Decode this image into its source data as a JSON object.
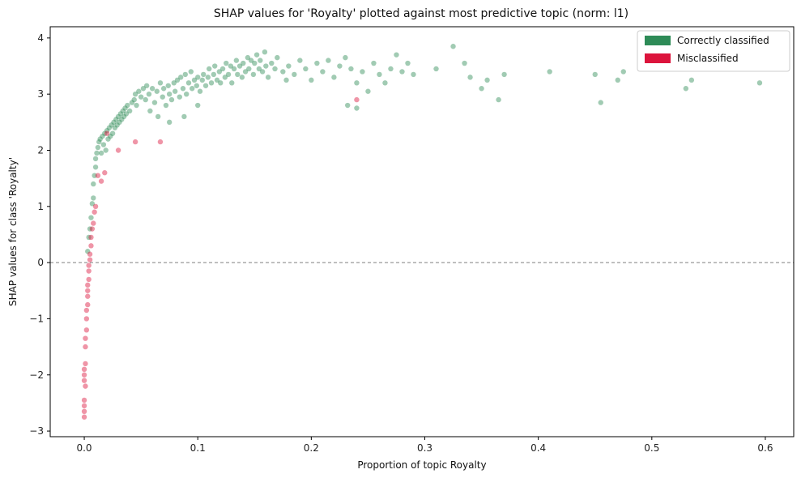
{
  "chart_data": {
    "type": "scatter",
    "title": "SHAP values for 'Royalty' plotted against most predictive topic (norm: l1)",
    "xlabel": "Proportion of topic Royalty",
    "ylabel": "SHAP values for class 'Royalty'",
    "xlim": [
      -0.03,
      0.625
    ],
    "ylim": [
      -3.1,
      4.2
    ],
    "xticks": [
      0.0,
      0.1,
      0.2,
      0.3,
      0.4,
      0.5,
      0.6
    ],
    "xtick_labels": [
      "0.0",
      "0.1",
      "0.2",
      "0.3",
      "0.4",
      "0.5",
      "0.6"
    ],
    "yticks": [
      -3,
      -2,
      -1,
      0,
      1,
      2,
      3,
      4
    ],
    "ytick_labels": [
      "−3",
      "−2",
      "−1",
      "0",
      "1",
      "2",
      "3",
      "4"
    ],
    "reference_line": {
      "y": 0,
      "style": "dashed",
      "color": "#808080"
    },
    "legend_position": "top-right",
    "series": [
      {
        "name": "Correctly classified",
        "color": "#2e8b57",
        "points": [
          [
            0.003,
            0.2
          ],
          [
            0.004,
            0.45
          ],
          [
            0.005,
            0.6
          ],
          [
            0.006,
            0.8
          ],
          [
            0.007,
            1.05
          ],
          [
            0.008,
            1.15
          ],
          [
            0.008,
            1.4
          ],
          [
            0.009,
            1.55
          ],
          [
            0.01,
            1.7
          ],
          [
            0.01,
            1.85
          ],
          [
            0.011,
            1.95
          ],
          [
            0.012,
            2.05
          ],
          [
            0.013,
            2.15
          ],
          [
            0.014,
            2.2
          ],
          [
            0.015,
            1.95
          ],
          [
            0.016,
            2.25
          ],
          [
            0.017,
            2.1
          ],
          [
            0.018,
            2.3
          ],
          [
            0.019,
            2.0
          ],
          [
            0.02,
            2.35
          ],
          [
            0.021,
            2.2
          ],
          [
            0.022,
            2.4
          ],
          [
            0.023,
            2.25
          ],
          [
            0.024,
            2.45
          ],
          [
            0.025,
            2.3
          ],
          [
            0.026,
            2.5
          ],
          [
            0.027,
            2.4
          ],
          [
            0.028,
            2.55
          ],
          [
            0.029,
            2.45
          ],
          [
            0.03,
            2.6
          ],
          [
            0.031,
            2.5
          ],
          [
            0.032,
            2.65
          ],
          [
            0.033,
            2.55
          ],
          [
            0.034,
            2.7
          ],
          [
            0.035,
            2.6
          ],
          [
            0.036,
            2.75
          ],
          [
            0.037,
            2.65
          ],
          [
            0.038,
            2.8
          ],
          [
            0.04,
            2.7
          ],
          [
            0.042,
            2.85
          ],
          [
            0.044,
            2.9
          ],
          [
            0.045,
            3.0
          ],
          [
            0.046,
            2.8
          ],
          [
            0.048,
            3.05
          ],
          [
            0.05,
            2.95
          ],
          [
            0.052,
            3.1
          ],
          [
            0.054,
            2.9
          ],
          [
            0.055,
            3.15
          ],
          [
            0.057,
            3.0
          ],
          [
            0.058,
            2.7
          ],
          [
            0.06,
            3.1
          ],
          [
            0.062,
            2.85
          ],
          [
            0.064,
            3.05
          ],
          [
            0.065,
            2.6
          ],
          [
            0.067,
            3.2
          ],
          [
            0.069,
            2.95
          ],
          [
            0.07,
            3.1
          ],
          [
            0.072,
            2.8
          ],
          [
            0.074,
            3.15
          ],
          [
            0.075,
            3.0
          ],
          [
            0.077,
            2.9
          ],
          [
            0.079,
            3.2
          ],
          [
            0.08,
            3.05
          ],
          [
            0.082,
            3.25
          ],
          [
            0.084,
            2.95
          ],
          [
            0.085,
            3.3
          ],
          [
            0.087,
            3.1
          ],
          [
            0.089,
            3.35
          ],
          [
            0.09,
            3.0
          ],
          [
            0.092,
            3.2
          ],
          [
            0.094,
            3.4
          ],
          [
            0.095,
            3.1
          ],
          [
            0.097,
            3.25
          ],
          [
            0.099,
            3.15
          ],
          [
            0.1,
            3.3
          ],
          [
            0.102,
            3.05
          ],
          [
            0.104,
            3.25
          ],
          [
            0.105,
            3.35
          ],
          [
            0.107,
            3.15
          ],
          [
            0.109,
            3.3
          ],
          [
            0.11,
            3.45
          ],
          [
            0.112,
            3.2
          ],
          [
            0.114,
            3.35
          ],
          [
            0.115,
            3.5
          ],
          [
            0.117,
            3.25
          ],
          [
            0.119,
            3.4
          ],
          [
            0.12,
            3.2
          ],
          [
            0.122,
            3.45
          ],
          [
            0.124,
            3.3
          ],
          [
            0.125,
            3.55
          ],
          [
            0.127,
            3.35
          ],
          [
            0.129,
            3.5
          ],
          [
            0.13,
            3.2
          ],
          [
            0.132,
            3.45
          ],
          [
            0.134,
            3.6
          ],
          [
            0.135,
            3.35
          ],
          [
            0.137,
            3.5
          ],
          [
            0.139,
            3.3
          ],
          [
            0.14,
            3.55
          ],
          [
            0.142,
            3.4
          ],
          [
            0.144,
            3.65
          ],
          [
            0.145,
            3.45
          ],
          [
            0.147,
            3.6
          ],
          [
            0.149,
            3.35
          ],
          [
            0.15,
            3.55
          ],
          [
            0.152,
            3.7
          ],
          [
            0.154,
            3.45
          ],
          [
            0.155,
            3.6
          ],
          [
            0.157,
            3.4
          ],
          [
            0.159,
            3.75
          ],
          [
            0.16,
            3.5
          ],
          [
            0.162,
            3.3
          ],
          [
            0.165,
            3.55
          ],
          [
            0.168,
            3.45
          ],
          [
            0.17,
            3.65
          ],
          [
            0.175,
            3.4
          ],
          [
            0.178,
            3.25
          ],
          [
            0.18,
            3.5
          ],
          [
            0.185,
            3.35
          ],
          [
            0.19,
            3.6
          ],
          [
            0.195,
            3.45
          ],
          [
            0.2,
            3.25
          ],
          [
            0.205,
            3.55
          ],
          [
            0.21,
            3.4
          ],
          [
            0.215,
            3.6
          ],
          [
            0.22,
            3.3
          ],
          [
            0.225,
            3.5
          ],
          [
            0.23,
            3.65
          ],
          [
            0.235,
            3.45
          ],
          [
            0.24,
            3.2
          ],
          [
            0.245,
            3.4
          ],
          [
            0.25,
            3.05
          ],
          [
            0.255,
            3.55
          ],
          [
            0.26,
            3.35
          ],
          [
            0.265,
            3.2
          ],
          [
            0.27,
            3.45
          ],
          [
            0.275,
            3.7
          ],
          [
            0.28,
            3.4
          ],
          [
            0.285,
            3.55
          ],
          [
            0.29,
            3.35
          ],
          [
            0.31,
            3.45
          ],
          [
            0.325,
            3.85
          ],
          [
            0.335,
            3.55
          ],
          [
            0.34,
            3.3
          ],
          [
            0.35,
            3.1
          ],
          [
            0.355,
            3.25
          ],
          [
            0.365,
            2.9
          ],
          [
            0.37,
            3.35
          ],
          [
            0.41,
            3.4
          ],
          [
            0.45,
            3.35
          ],
          [
            0.455,
            2.85
          ],
          [
            0.47,
            3.25
          ],
          [
            0.475,
            3.4
          ],
          [
            0.53,
            3.1
          ],
          [
            0.535,
            3.25
          ],
          [
            0.595,
            3.2
          ],
          [
            0.232,
            2.8
          ],
          [
            0.24,
            2.75
          ],
          [
            0.1,
            2.8
          ],
          [
            0.088,
            2.6
          ],
          [
            0.075,
            2.5
          ]
        ]
      },
      {
        "name": "Misclassified",
        "color": "#dc143c",
        "points": [
          [
            0.0,
            -2.75
          ],
          [
            0.0,
            -2.65
          ],
          [
            0.0,
            -2.55
          ],
          [
            0.0,
            -2.45
          ],
          [
            0.0,
            -2.1
          ],
          [
            0.0,
            -2.0
          ],
          [
            0.0,
            -1.9
          ],
          [
            0.001,
            -2.2
          ],
          [
            0.001,
            -1.8
          ],
          [
            0.001,
            -1.5
          ],
          [
            0.001,
            -1.35
          ],
          [
            0.002,
            -1.2
          ],
          [
            0.002,
            -1.0
          ],
          [
            0.002,
            -0.85
          ],
          [
            0.003,
            -0.75
          ],
          [
            0.003,
            -0.6
          ],
          [
            0.003,
            -0.5
          ],
          [
            0.003,
            -0.4
          ],
          [
            0.004,
            -0.3
          ],
          [
            0.004,
            -0.15
          ],
          [
            0.004,
            -0.05
          ],
          [
            0.005,
            0.05
          ],
          [
            0.005,
            0.15
          ],
          [
            0.006,
            0.3
          ],
          [
            0.006,
            0.45
          ],
          [
            0.007,
            0.6
          ],
          [
            0.008,
            0.7
          ],
          [
            0.009,
            0.9
          ],
          [
            0.01,
            1.0
          ],
          [
            0.012,
            1.55
          ],
          [
            0.015,
            1.45
          ],
          [
            0.018,
            1.6
          ],
          [
            0.02,
            2.3
          ],
          [
            0.03,
            2.0
          ],
          [
            0.045,
            2.15
          ],
          [
            0.067,
            2.15
          ],
          [
            0.24,
            2.9
          ]
        ]
      }
    ]
  }
}
